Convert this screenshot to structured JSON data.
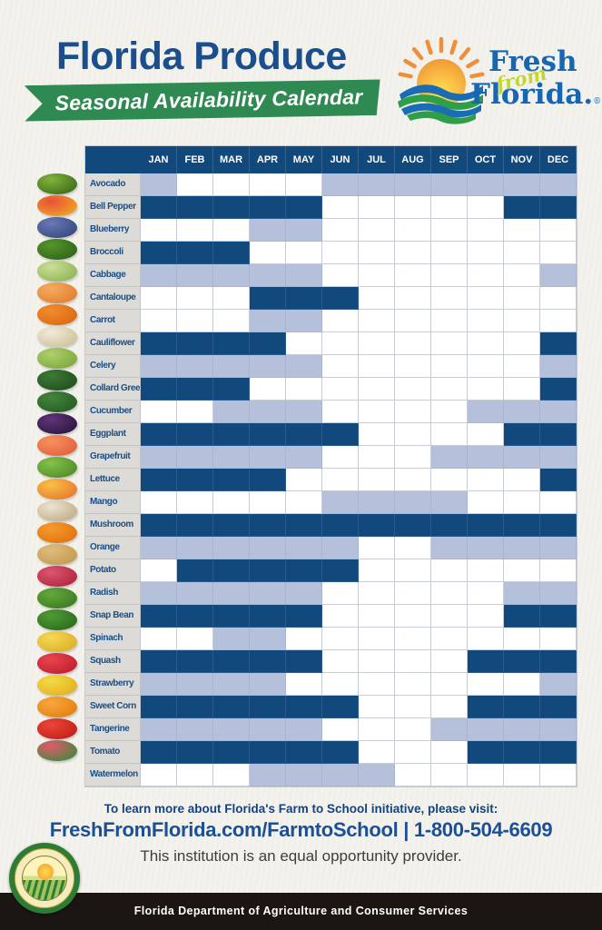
{
  "header": {
    "title": "Florida Produce",
    "banner": "Seasonal Availability Calendar"
  },
  "logo": {
    "fresh": "Fresh",
    "from": "from",
    "florida": "Florida.",
    "registered": "®"
  },
  "chart_data": {
    "type": "heatmap",
    "title": "Florida Produce",
    "subtitle": "Seasonal Availability Calendar",
    "categories": [
      "JAN",
      "FEB",
      "MAR",
      "APR",
      "MAY",
      "JUN",
      "JUL",
      "AUG",
      "SEP",
      "OCT",
      "NOV",
      "DEC"
    ],
    "cell_states": {
      "0": "blank",
      "1": "light-blue",
      "2": "dark-navy"
    },
    "colors": {
      "dark_navy": "#12497d",
      "light_blue": "#b5c0db",
      "header_bg": "#12497d",
      "label_bg": "#dcdbd7",
      "label_text": "#1b4e84"
    },
    "rows": [
      {
        "name": "Avocado",
        "icon": "avocado-icon",
        "icon_colors": [
          "#7fb33a",
          "#3e6b1a"
        ],
        "values": [
          1,
          0,
          0,
          0,
          0,
          1,
          1,
          1,
          1,
          1,
          1,
          1
        ]
      },
      {
        "name": "Bell Pepper",
        "icon": "bell-pepper-icon",
        "icon_colors": [
          "#e8513a",
          "#f0a424"
        ],
        "values": [
          2,
          2,
          2,
          2,
          2,
          0,
          0,
          0,
          0,
          0,
          2,
          2
        ]
      },
      {
        "name": "Blueberry",
        "icon": "blueberry-icon",
        "icon_colors": [
          "#6a79b5",
          "#36477e"
        ],
        "values": [
          0,
          0,
          0,
          1,
          1,
          0,
          0,
          0,
          0,
          0,
          0,
          0
        ]
      },
      {
        "name": "Broccoli",
        "icon": "broccoli-icon",
        "icon_colors": [
          "#55952c",
          "#2f6317"
        ],
        "values": [
          2,
          2,
          2,
          0,
          0,
          0,
          0,
          0,
          0,
          0,
          0,
          0
        ]
      },
      {
        "name": "Cabbage",
        "icon": "cabbage-icon",
        "icon_colors": [
          "#cbdf96",
          "#8fb456"
        ],
        "values": [
          1,
          1,
          1,
          1,
          1,
          0,
          0,
          0,
          0,
          0,
          0,
          1
        ]
      },
      {
        "name": "Cantaloupe",
        "icon": "cantaloupe-icon",
        "icon_colors": [
          "#f4ab62",
          "#e07f2e"
        ],
        "values": [
          0,
          0,
          0,
          2,
          2,
          2,
          0,
          0,
          0,
          0,
          0,
          0
        ]
      },
      {
        "name": "Carrot",
        "icon": "carrot-icon",
        "icon_colors": [
          "#f28c2c",
          "#d96a10"
        ],
        "values": [
          0,
          0,
          0,
          1,
          1,
          0,
          0,
          0,
          0,
          0,
          0,
          0
        ]
      },
      {
        "name": "Cauliflower",
        "icon": "cauliflower-icon",
        "icon_colors": [
          "#f1ead9",
          "#cdc29b"
        ],
        "values": [
          2,
          2,
          2,
          2,
          0,
          0,
          0,
          0,
          0,
          0,
          0,
          2
        ]
      },
      {
        "name": "Celery",
        "icon": "celery-icon",
        "icon_colors": [
          "#b0cf6d",
          "#7ba83c"
        ],
        "values": [
          1,
          1,
          1,
          1,
          1,
          0,
          0,
          0,
          0,
          0,
          0,
          1
        ]
      },
      {
        "name": "Collard Green",
        "icon": "collard-green-icon",
        "icon_colors": [
          "#3d7a36",
          "#1f4f1e"
        ],
        "values": [
          2,
          2,
          2,
          0,
          0,
          0,
          0,
          0,
          0,
          0,
          0,
          2
        ]
      },
      {
        "name": "Cucumber",
        "icon": "cucumber-icon",
        "icon_colors": [
          "#44853c",
          "#245c22"
        ],
        "values": [
          0,
          0,
          1,
          1,
          1,
          0,
          0,
          0,
          0,
          1,
          1,
          1
        ]
      },
      {
        "name": "Eggplant",
        "icon": "eggplant-icon",
        "icon_colors": [
          "#5e3578",
          "#2e1640"
        ],
        "values": [
          2,
          2,
          2,
          2,
          2,
          2,
          0,
          0,
          0,
          0,
          2,
          2
        ]
      },
      {
        "name": "Grapefruit",
        "icon": "grapefruit-icon",
        "icon_colors": [
          "#f4925e",
          "#e45f3c"
        ],
        "values": [
          1,
          1,
          1,
          1,
          1,
          0,
          0,
          0,
          1,
          1,
          1,
          1
        ]
      },
      {
        "name": "Lettuce",
        "icon": "lettuce-icon",
        "icon_colors": [
          "#86c14a",
          "#4f8c27"
        ],
        "values": [
          2,
          2,
          2,
          2,
          0,
          0,
          0,
          0,
          0,
          0,
          0,
          2
        ]
      },
      {
        "name": "Mango",
        "icon": "mango-icon",
        "icon_colors": [
          "#f7c244",
          "#e8762f"
        ],
        "values": [
          0,
          0,
          0,
          0,
          0,
          1,
          1,
          1,
          1,
          0,
          0,
          0
        ]
      },
      {
        "name": "Mushroom",
        "icon": "mushroom-icon",
        "icon_colors": [
          "#ece3d0",
          "#c0ad88"
        ],
        "values": [
          2,
          2,
          2,
          2,
          2,
          2,
          2,
          2,
          2,
          2,
          2,
          2
        ]
      },
      {
        "name": "Orange",
        "icon": "orange-icon",
        "icon_colors": [
          "#f69a2c",
          "#e0720f"
        ],
        "values": [
          1,
          1,
          1,
          1,
          1,
          1,
          0,
          0,
          1,
          1,
          1,
          1
        ]
      },
      {
        "name": "Potato",
        "icon": "potato-icon",
        "icon_colors": [
          "#e0bd7e",
          "#c29a50"
        ],
        "values": [
          0,
          2,
          2,
          2,
          2,
          2,
          0,
          0,
          0,
          0,
          0,
          0
        ]
      },
      {
        "name": "Radish",
        "icon": "radish-icon",
        "icon_colors": [
          "#dd5570",
          "#b02540"
        ],
        "values": [
          1,
          1,
          1,
          1,
          1,
          0,
          0,
          0,
          0,
          0,
          1,
          1
        ]
      },
      {
        "name": "Snap Bean",
        "icon": "snap-bean-icon",
        "icon_colors": [
          "#64a83c",
          "#3a7a1f"
        ],
        "values": [
          2,
          2,
          2,
          2,
          2,
          0,
          0,
          0,
          0,
          0,
          2,
          2
        ]
      },
      {
        "name": "Spinach",
        "icon": "spinach-icon",
        "icon_colors": [
          "#4f9a35",
          "#2c6b1c"
        ],
        "values": [
          0,
          0,
          1,
          1,
          0,
          0,
          0,
          0,
          0,
          0,
          0,
          0
        ]
      },
      {
        "name": "Squash",
        "icon": "squash-icon",
        "icon_colors": [
          "#f5d955",
          "#dcae2a"
        ],
        "values": [
          2,
          2,
          2,
          2,
          2,
          0,
          0,
          0,
          0,
          2,
          2,
          2
        ]
      },
      {
        "name": "Strawberry",
        "icon": "strawberry-icon",
        "icon_colors": [
          "#e84450",
          "#c01f2f"
        ],
        "values": [
          1,
          1,
          1,
          1,
          0,
          0,
          0,
          0,
          0,
          0,
          0,
          1
        ]
      },
      {
        "name": "Sweet Corn",
        "icon": "sweet-corn-icon",
        "icon_colors": [
          "#f6d946",
          "#e3b01f"
        ],
        "values": [
          2,
          2,
          2,
          2,
          2,
          2,
          0,
          0,
          0,
          2,
          2,
          2
        ]
      },
      {
        "name": "Tangerine",
        "icon": "tangerine-icon",
        "icon_colors": [
          "#f8a83c",
          "#e27f12"
        ],
        "values": [
          1,
          1,
          1,
          1,
          1,
          0,
          0,
          0,
          1,
          1,
          1,
          1
        ]
      },
      {
        "name": "Tomato",
        "icon": "tomato-icon",
        "icon_colors": [
          "#ea4536",
          "#c21f1a"
        ],
        "values": [
          2,
          2,
          2,
          2,
          2,
          2,
          0,
          0,
          0,
          2,
          2,
          2
        ]
      },
      {
        "name": "Watermelon",
        "icon": "watermelon-icon",
        "icon_colors": [
          "#e2596c",
          "#3f8a3a"
        ],
        "values": [
          0,
          0,
          0,
          1,
          1,
          1,
          1,
          0,
          0,
          0,
          0,
          0
        ]
      }
    ]
  },
  "footer": {
    "learn_more": "To learn more about Florida's Farm to School initiative, please visit:",
    "link": "FreshFromFlorida.com/FarmtoSchool",
    "separator": "|",
    "phone": "1-800-504-6609",
    "equal_opportunity": "This institution is an equal opportunity provider.",
    "bottom_bar": "Florida Department of Agriculture and Consumer Services"
  }
}
